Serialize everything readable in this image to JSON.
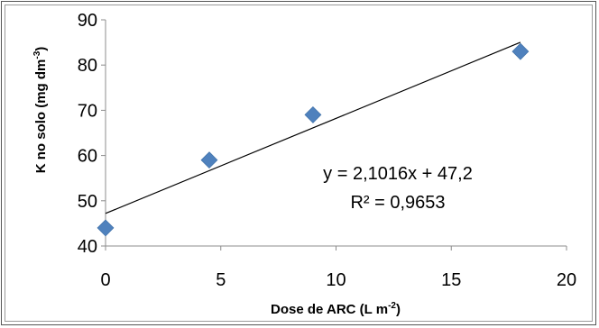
{
  "chart_data": {
    "type": "scatter",
    "title": "",
    "xlabel": "Dose de ARC (L m-2)",
    "xlabel_parts": {
      "main": "Dose de ARC (L m",
      "sup": "-2",
      "close": ")"
    },
    "ylabel": "K no solo (mg dm-3)",
    "ylabel_parts": {
      "main": "K no solo (mg dm",
      "sup": "-3",
      "close": ")"
    },
    "xlim": [
      0,
      20
    ],
    "ylim": [
      40,
      90
    ],
    "x_ticks": [
      0,
      5,
      10,
      15,
      20
    ],
    "y_ticks": [
      40,
      50,
      60,
      70,
      80,
      90
    ],
    "grid": false,
    "legend": "none",
    "marker": "diamond",
    "marker_color": "#4f81bd",
    "series": [
      {
        "x": [
          0,
          4.5,
          9,
          18
        ],
        "y": [
          44,
          59,
          69,
          83
        ]
      }
    ],
    "trendline": {
      "type": "linear",
      "slope": 2.1016,
      "intercept": 47.2,
      "x_range": [
        0,
        18
      ]
    },
    "annotations": {
      "equation": "y = 2,1016x + 47,2",
      "r2_prefix": "R² = ",
      "r2_value": "0,9653"
    }
  }
}
